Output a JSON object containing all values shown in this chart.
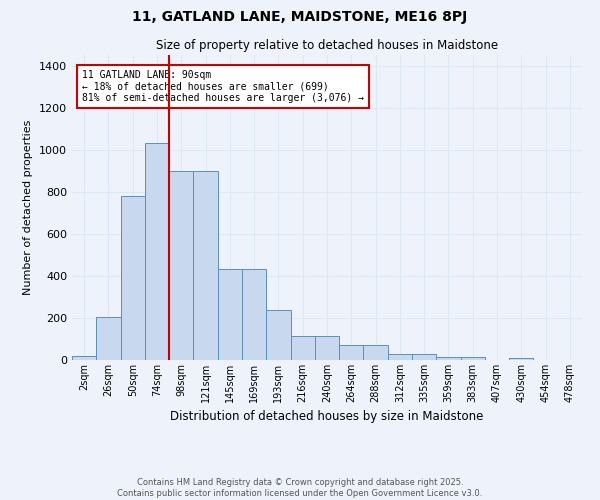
{
  "title": "11, GATLAND LANE, MAIDSTONE, ME16 8PJ",
  "subtitle": "Size of property relative to detached houses in Maidstone",
  "xlabel": "Distribution of detached houses by size in Maidstone",
  "ylabel": "Number of detached properties",
  "bin_labels": [
    "2sqm",
    "26sqm",
    "50sqm",
    "74sqm",
    "98sqm",
    "121sqm",
    "145sqm",
    "169sqm",
    "193sqm",
    "216sqm",
    "240sqm",
    "264sqm",
    "288sqm",
    "312sqm",
    "335sqm",
    "359sqm",
    "383sqm",
    "407sqm",
    "430sqm",
    "454sqm",
    "478sqm"
  ],
  "bar_heights": [
    20,
    205,
    780,
    1030,
    900,
    900,
    435,
    435,
    240,
    115,
    115,
    70,
    70,
    28,
    28,
    12,
    12,
    0,
    10,
    0,
    0
  ],
  "bar_color": "#c8d8ee",
  "bar_edge_color": "#5a8fc0",
  "grid_color": "#dde8f5",
  "background_color": "#eef3fb",
  "vline_bin_index": 4,
  "vline_color": "#cc0000",
  "annotation_text": "11 GATLAND LANE: 90sqm\n← 18% of detached houses are smaller (699)\n81% of semi-detached houses are larger (3,076) →",
  "annotation_box_color": "#ffffff",
  "annotation_box_edge": "#cc0000",
  "footer_text": "Contains HM Land Registry data © Crown copyright and database right 2025.\nContains public sector information licensed under the Open Government Licence v3.0.",
  "ylim": [
    0,
    1450
  ],
  "yticks": [
    0,
    200,
    400,
    600,
    800,
    1000,
    1200,
    1400
  ]
}
